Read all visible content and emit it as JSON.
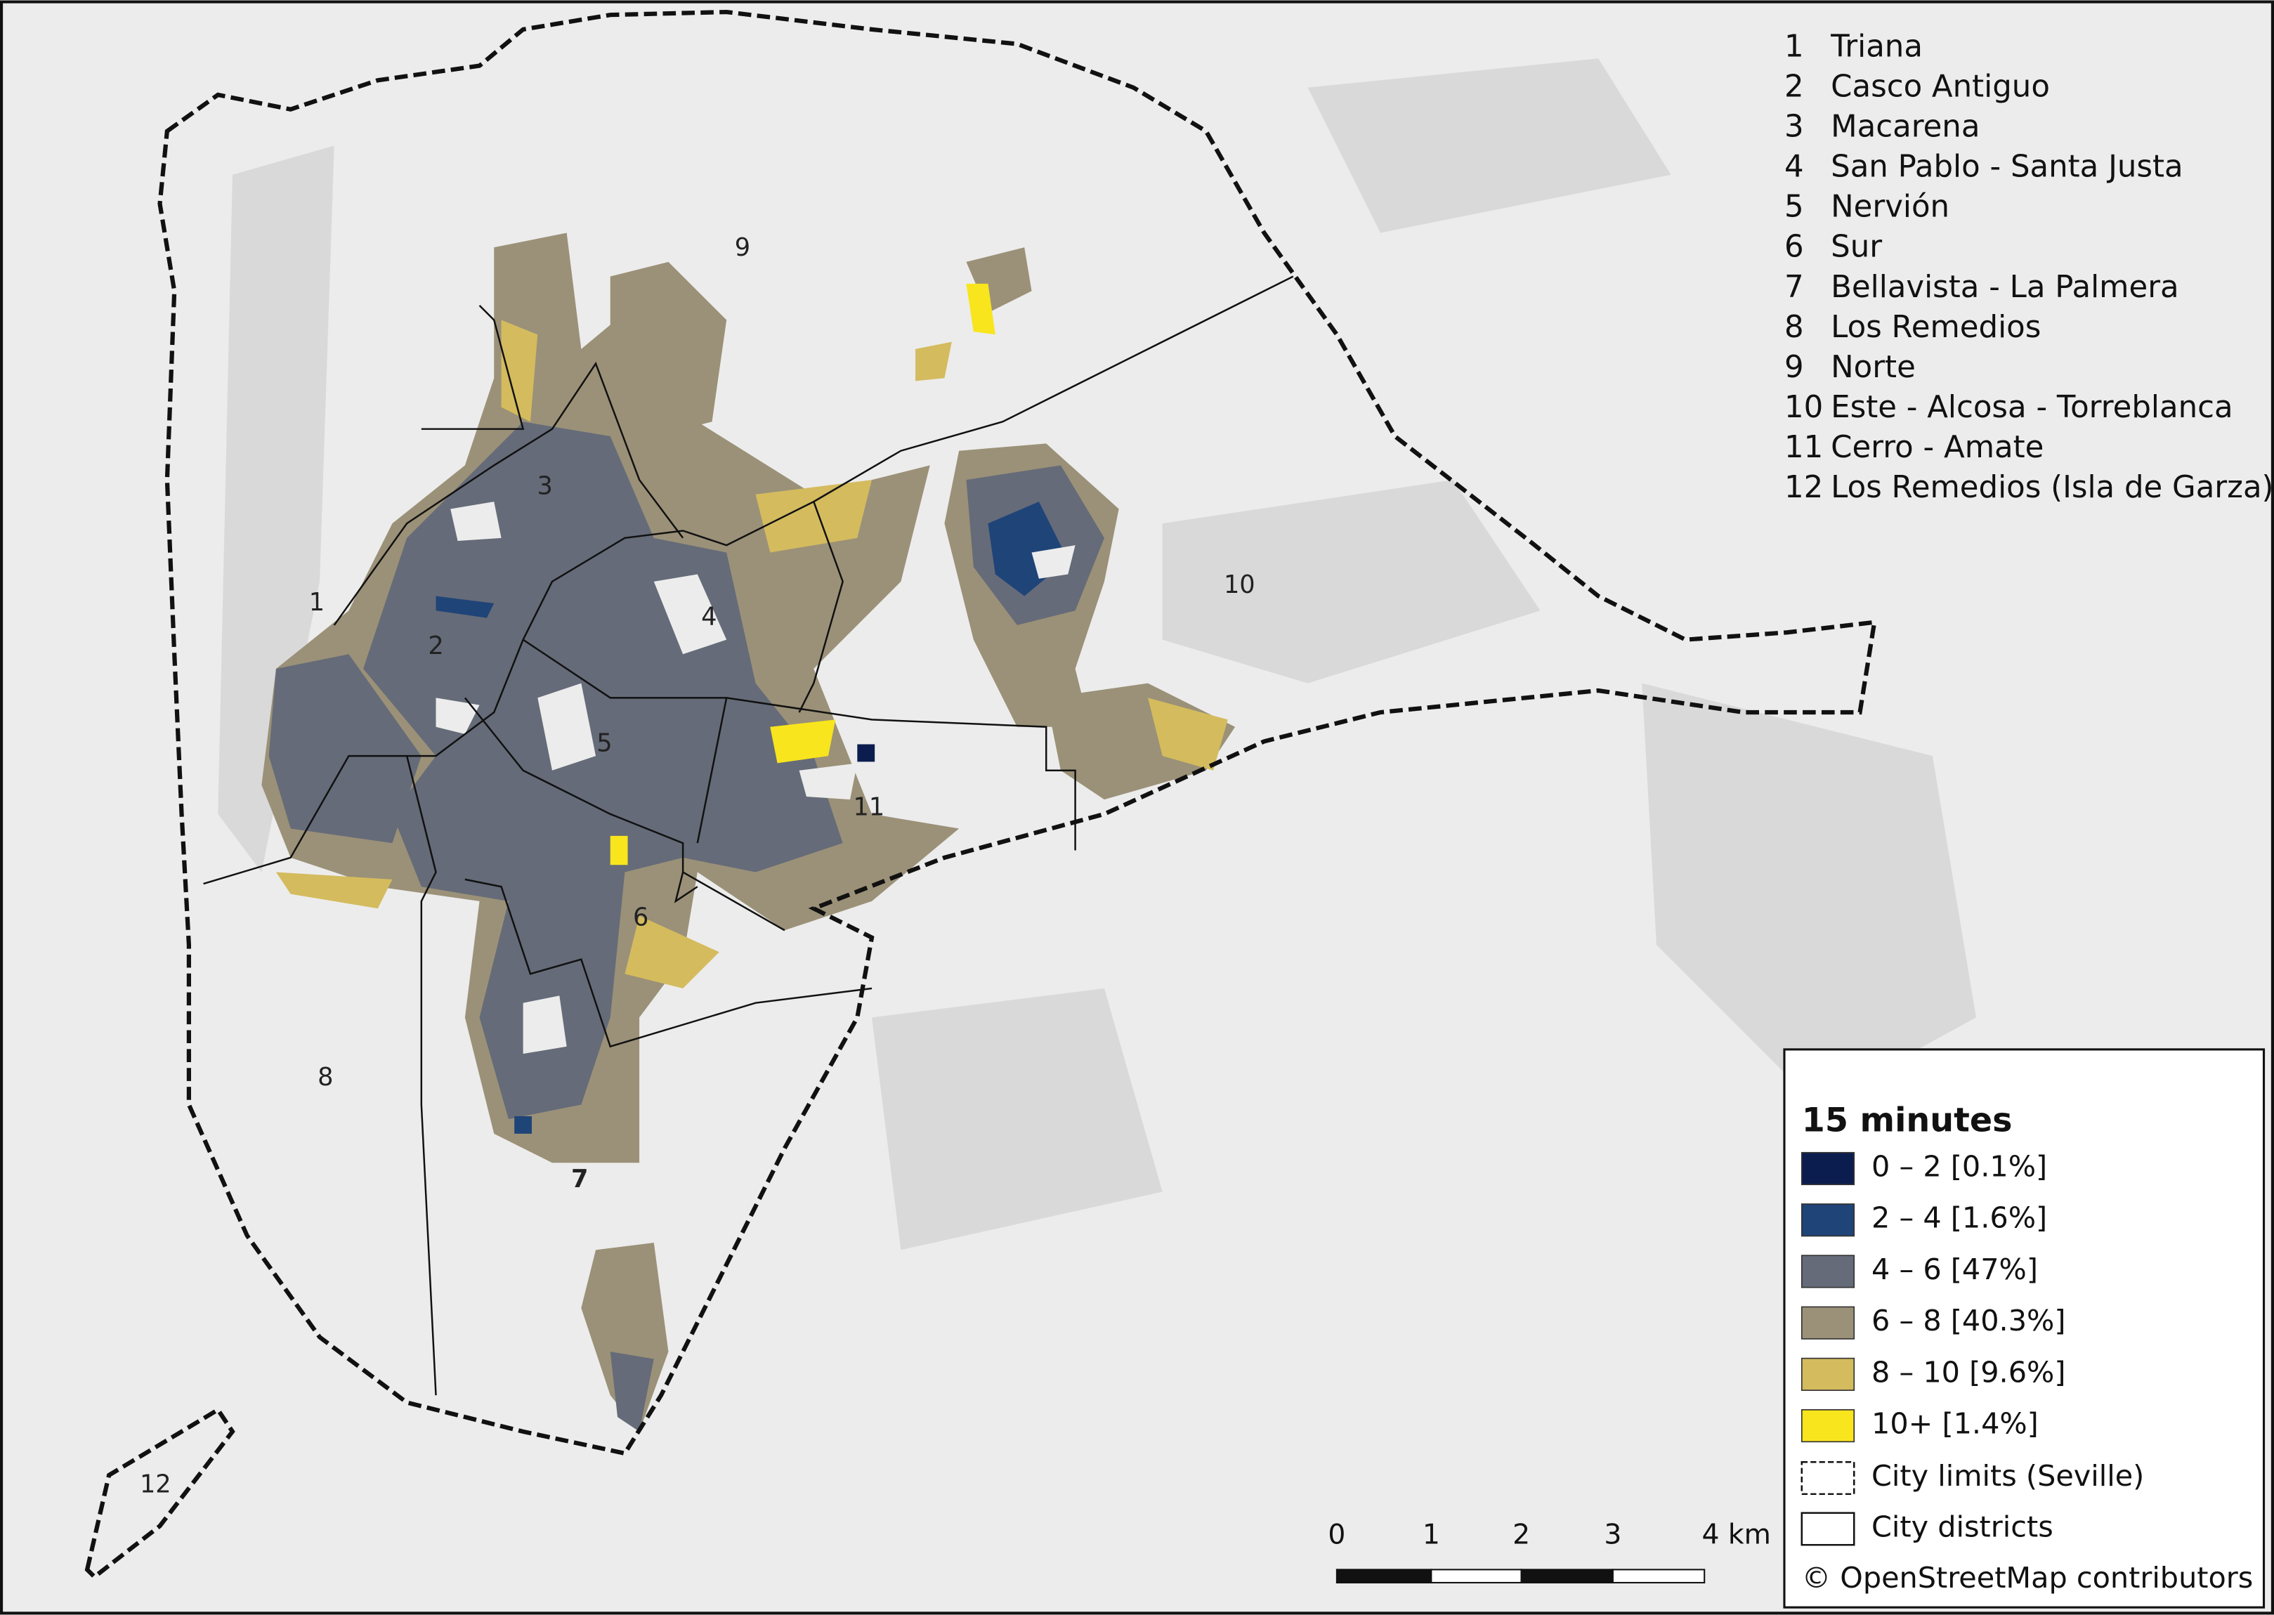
{
  "districts": [
    {
      "number": "1",
      "name": "Triana"
    },
    {
      "number": "2",
      "name": "Casco Antiguo"
    },
    {
      "number": "3",
      "name": "Macarena"
    },
    {
      "number": "4",
      "name": "San Pablo - Santa Justa"
    },
    {
      "number": "5",
      "name": "Nervión"
    },
    {
      "number": "6",
      "name": "Sur"
    },
    {
      "number": "7",
      "name": "Bellavista - La Palmera"
    },
    {
      "number": "8",
      "name": "Los Remedios"
    },
    {
      "number": "9",
      "name": "Norte"
    },
    {
      "number": "10",
      "name": "Este - Alcosa - Torreblanca"
    },
    {
      "number": "11",
      "name": "Cerro - Amate"
    },
    {
      "number": "12",
      "name": "Los Remedios (Isla de Garza)"
    }
  ],
  "legend": {
    "title": "15 minutes",
    "items": [
      {
        "label": "0 – 2 [0.1%]",
        "color": "#0b1d4f"
      },
      {
        "label": "2 – 4 [1.6%]",
        "color": "#1f4478"
      },
      {
        "label": "4 – 6 [47%]",
        "color": "#656b78"
      },
      {
        "label": "6 – 8 [40.3%]",
        "color": "#9b9178"
      },
      {
        "label": "8 – 10 [9.6%]",
        "color": "#d4bb5e"
      },
      {
        "label": "10+ [1.4%]",
        "color": "#f8e51d"
      }
    ],
    "city_limits": "City limits (Seville)",
    "city_districts": "City districts"
  },
  "scale_bar": [
    "0",
    "1",
    "2",
    "3",
    "4 km"
  ],
  "attribution": "© OpenStreetMap contributors"
}
